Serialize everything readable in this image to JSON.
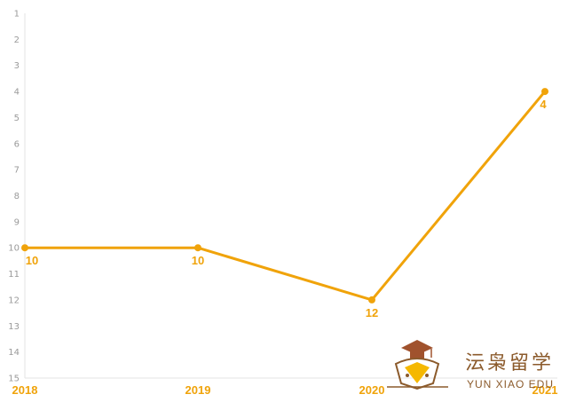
{
  "chart_data": {
    "type": "line",
    "x": [
      "2018",
      "2019",
      "2020",
      "2021"
    ],
    "values": [
      10,
      10,
      12,
      4
    ],
    "data_labels": [
      "10",
      "10",
      "12",
      "4"
    ],
    "y_ticks": [
      "1",
      "2",
      "3",
      "4",
      "5",
      "6",
      "7",
      "8",
      "9",
      "10",
      "11",
      "12",
      "13",
      "14",
      "15"
    ],
    "ylim": [
      1,
      15
    ],
    "y_inverted": true,
    "grid": false,
    "line_color": "#F0A30A",
    "tick_color": "#9a9a9a"
  },
  "watermark": {
    "chinese": "沄枭留学",
    "english": "YUN XIAO EDU",
    "primary_color": "#8B5A2B",
    "accent_color": "#F5B800"
  }
}
